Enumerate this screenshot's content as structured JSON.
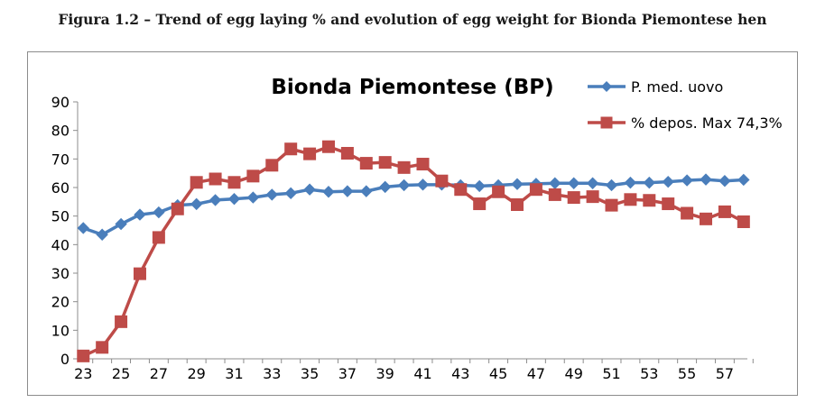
{
  "figure_caption": "Figura 1.2 – Trend of egg laying % and evolution of egg weight for Bionda Piemontese hen",
  "chart_data": {
    "type": "line",
    "title": "Bionda Piemontese (BP)",
    "xlabel": "",
    "ylabel": "",
    "x": [
      23,
      24,
      25,
      26,
      27,
      28,
      29,
      30,
      31,
      32,
      33,
      34,
      35,
      36,
      37,
      38,
      39,
      40,
      41,
      42,
      43,
      44,
      45,
      46,
      47,
      48,
      49,
      50,
      51,
      52,
      53,
      54,
      55,
      56,
      57,
      58
    ],
    "x_tick_labels": [
      "23",
      "25",
      "27",
      "29",
      "31",
      "33",
      "35",
      "37",
      "39",
      "41",
      "43",
      "45",
      "47",
      "49",
      "51",
      "53",
      "55",
      "57"
    ],
    "ylim": [
      0,
      90
    ],
    "y_ticks": [
      "0",
      "10",
      "20",
      "30",
      "40",
      "50",
      "60",
      "70",
      "80",
      "90"
    ],
    "grid": false,
    "legend_position": "top-right",
    "series": [
      {
        "name": "P. med. uovo",
        "color": "#4a7ebb",
        "marker": "diamond",
        "values": [
          45.8,
          43.5,
          47.2,
          50.5,
          51.3,
          53.8,
          54.2,
          55.6,
          56.0,
          56.5,
          57.5,
          58.0,
          59.3,
          58.5,
          58.7,
          58.7,
          60.2,
          60.8,
          61.0,
          61.0,
          60.8,
          60.5,
          60.8,
          61.2,
          61.3,
          61.5,
          61.5,
          61.5,
          60.8,
          61.7,
          61.7,
          62.0,
          62.5,
          62.8,
          62.3,
          62.7
        ]
      },
      {
        "name": "% depos. Max 74,3%",
        "color": "#be4b48",
        "marker": "square",
        "values": [
          1.0,
          4.0,
          13.0,
          29.8,
          42.5,
          52.5,
          61.8,
          63.0,
          61.8,
          64.0,
          67.8,
          73.5,
          71.8,
          74.3,
          72.0,
          68.5,
          68.8,
          67.0,
          68.2,
          62.3,
          59.3,
          54.3,
          58.5,
          54.0,
          59.3,
          57.5,
          56.5,
          56.8,
          53.8,
          55.8,
          55.5,
          54.3,
          51.0,
          49.0,
          51.5,
          48.0
        ]
      }
    ]
  }
}
